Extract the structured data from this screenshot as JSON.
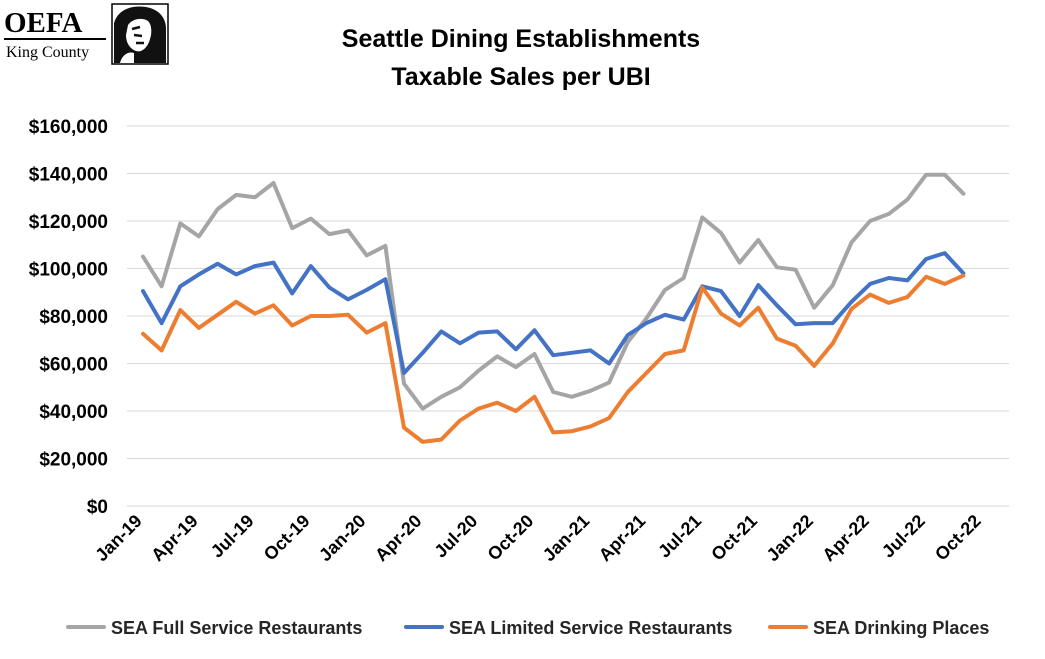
{
  "logo": {
    "name": "OEFA",
    "region": "King County"
  },
  "colors": {
    "full_service": "#a5a5a5",
    "limited_service": "#4472c4",
    "drinking": "#ed7d31",
    "grid": "#d9d9d9"
  },
  "chart_data": {
    "type": "line",
    "title": "Seattle Dining Establishments",
    "subtitle": "Taxable Sales per UBI",
    "xlabel": "",
    "ylabel": "",
    "ylim": [
      0,
      160000
    ],
    "yticks": [
      {
        "value": 0,
        "label": "$0"
      },
      {
        "value": 20000,
        "label": "$20,000"
      },
      {
        "value": 40000,
        "label": "$40,000"
      },
      {
        "value": 60000,
        "label": "$60,000"
      },
      {
        "value": 80000,
        "label": "$80,000"
      },
      {
        "value": 100000,
        "label": "$100,000"
      },
      {
        "value": 120000,
        "label": "$120,000"
      },
      {
        "value": 140000,
        "label": "$140,000"
      },
      {
        "value": 160000,
        "label": "$160,000"
      }
    ],
    "x_tick_labels": [
      "Jan-19",
      "Apr-19",
      "Jul-19",
      "Oct-19",
      "Jan-20",
      "Apr-20",
      "Jul-20",
      "Oct-20",
      "Jan-21",
      "Apr-21",
      "Jul-21",
      "Oct-21",
      "Jan-22",
      "Apr-22",
      "Jul-22",
      "Oct-22"
    ],
    "grid": true,
    "legend_position": "bottom",
    "categories": [
      "Jan-19",
      "Feb-19",
      "Mar-19",
      "Apr-19",
      "May-19",
      "Jun-19",
      "Jul-19",
      "Aug-19",
      "Sep-19",
      "Oct-19",
      "Nov-19",
      "Dec-19",
      "Jan-20",
      "Feb-20",
      "Mar-20",
      "Apr-20",
      "May-20",
      "Jun-20",
      "Jul-20",
      "Aug-20",
      "Sep-20",
      "Oct-20",
      "Nov-20",
      "Dec-20",
      "Jan-21",
      "Feb-21",
      "Mar-21",
      "Apr-21",
      "May-21",
      "Jun-21",
      "Jul-21",
      "Aug-21",
      "Sep-21",
      "Oct-21",
      "Nov-21",
      "Dec-21",
      "Jan-22",
      "Feb-22",
      "Mar-22",
      "Apr-22",
      "May-22",
      "Jun-22",
      "Jul-22",
      "Aug-22",
      "Sep-22",
      "Oct-22"
    ],
    "series": [
      {
        "name": "SEA Full Service Restaurants",
        "color": "#a5a5a5",
        "values": [
          105000,
          92500,
          119000,
          113500,
          125000,
          131000,
          130000,
          136000,
          117000,
          121000,
          114500,
          116000,
          105500,
          109500,
          51500,
          41000,
          46000,
          50000,
          57000,
          63000,
          58500,
          64000,
          48000,
          46000,
          48500,
          52000,
          69000,
          79000,
          91000,
          96000,
          121500,
          115000,
          102500,
          112000,
          100500,
          99500,
          83500,
          93000,
          111000,
          120000,
          123000,
          129000,
          139500,
          139500,
          131500,
          null
        ]
      },
      {
        "name": "SEA Limited Service Restaurants",
        "color": "#4472c4",
        "values": [
          90500,
          77000,
          92500,
          97500,
          102000,
          97500,
          101000,
          102500,
          89500,
          101000,
          92000,
          87000,
          91000,
          95500,
          56000,
          64500,
          73500,
          68500,
          73000,
          73500,
          66000,
          74000,
          63500,
          64500,
          65500,
          60000,
          72000,
          77000,
          80500,
          78500,
          92500,
          90500,
          80000,
          93000,
          84500,
          76500,
          77000,
          77000,
          86000,
          93500,
          96000,
          95000,
          104000,
          106500,
          98000,
          null
        ]
      },
      {
        "name": "SEA Drinking Places",
        "color": "#ed7d31",
        "values": [
          72500,
          65500,
          82500,
          75000,
          80500,
          86000,
          81000,
          84500,
          76000,
          80000,
          80000,
          80500,
          73000,
          77000,
          33000,
          27000,
          28000,
          36000,
          41000,
          43500,
          40000,
          46000,
          31000,
          31500,
          33500,
          37000,
          48000,
          56000,
          64000,
          65500,
          92000,
          81000,
          76000,
          83500,
          70500,
          67500,
          59000,
          68500,
          83000,
          89000,
          85500,
          88000,
          96500,
          93500,
          97000,
          null
        ]
      }
    ]
  }
}
